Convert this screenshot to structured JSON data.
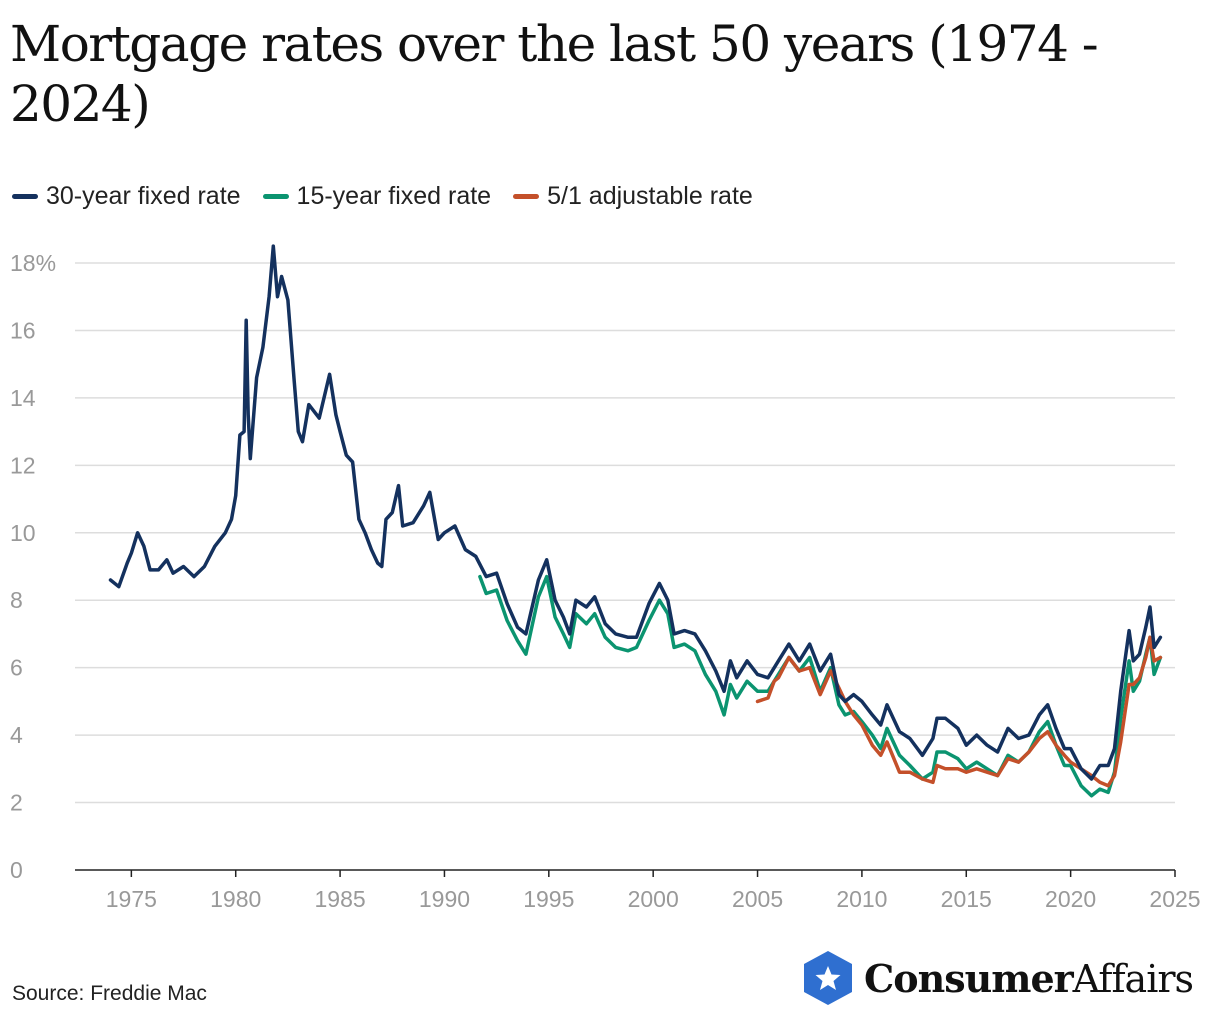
{
  "title": "Mortgage rates over the last 50 years (1974 - 2024)",
  "source": "Source: Freddie Mac",
  "logo": {
    "bold": "Consumer",
    "regular": "Affairs",
    "icon": "star-badge-icon",
    "color": "#2f6fd0"
  },
  "colors": {
    "s30": "#14315e",
    "s15": "#0b9470",
    "s51": "#c4502a",
    "grid": "#dddddd",
    "axis": "#222222",
    "tick": "#999999"
  },
  "chart_data": {
    "type": "line",
    "title": "Mortgage rates over the last 50 years (1974 - 2024)",
    "xlabel": "",
    "ylabel": "",
    "xlim": [
      1972.3,
      2025
    ],
    "ylim": [
      0,
      18
    ],
    "grid": "horizontal",
    "legend": "top-left",
    "x_ticks": [
      "1975",
      "1980",
      "1985",
      "1990",
      "1995",
      "2000",
      "2005",
      "2010",
      "2015",
      "2020",
      "2025"
    ],
    "y_ticks": [
      "18%",
      "16",
      "14",
      "12",
      "10",
      "8",
      "6",
      "4",
      "2",
      "0"
    ],
    "series": [
      {
        "name": "30-year fixed rate",
        "color": "#14315e",
        "points": [
          [
            1974.0,
            8.6
          ],
          [
            1974.4,
            8.4
          ],
          [
            1974.8,
            9.1
          ],
          [
            1975.0,
            9.4
          ],
          [
            1975.3,
            10.0
          ],
          [
            1975.6,
            9.6
          ],
          [
            1975.9,
            8.9
          ],
          [
            1976.3,
            8.9
          ],
          [
            1976.7,
            9.2
          ],
          [
            1977.0,
            8.8
          ],
          [
            1977.5,
            9.0
          ],
          [
            1978.0,
            8.7
          ],
          [
            1978.5,
            9.0
          ],
          [
            1979.0,
            9.6
          ],
          [
            1979.5,
            10.0
          ],
          [
            1979.8,
            10.4
          ],
          [
            1980.0,
            11.1
          ],
          [
            1980.2,
            12.9
          ],
          [
            1980.4,
            13.0
          ],
          [
            1980.5,
            16.3
          ],
          [
            1980.6,
            13.5
          ],
          [
            1980.7,
            12.2
          ],
          [
            1981.0,
            14.6
          ],
          [
            1981.3,
            15.5
          ],
          [
            1981.6,
            17.0
          ],
          [
            1981.8,
            18.5
          ],
          [
            1982.0,
            17.0
          ],
          [
            1982.2,
            17.6
          ],
          [
            1982.5,
            16.9
          ],
          [
            1982.8,
            14.5
          ],
          [
            1983.0,
            13.0
          ],
          [
            1983.2,
            12.7
          ],
          [
            1983.5,
            13.8
          ],
          [
            1984.0,
            13.4
          ],
          [
            1984.5,
            14.7
          ],
          [
            1984.8,
            13.5
          ],
          [
            1985.0,
            13.0
          ],
          [
            1985.3,
            12.3
          ],
          [
            1985.6,
            12.1
          ],
          [
            1985.9,
            10.4
          ],
          [
            1986.2,
            10.0
          ],
          [
            1986.5,
            9.5
          ],
          [
            1986.8,
            9.1
          ],
          [
            1987.0,
            9.0
          ],
          [
            1987.2,
            10.4
          ],
          [
            1987.5,
            10.6
          ],
          [
            1987.8,
            11.4
          ],
          [
            1988.0,
            10.2
          ],
          [
            1988.5,
            10.3
          ],
          [
            1989.0,
            10.8
          ],
          [
            1989.3,
            11.2
          ],
          [
            1989.7,
            9.8
          ],
          [
            1990.0,
            10.0
          ],
          [
            1990.5,
            10.2
          ],
          [
            1991.0,
            9.5
          ],
          [
            1991.5,
            9.3
          ],
          [
            1992.0,
            8.7
          ],
          [
            1992.5,
            8.8
          ],
          [
            1993.0,
            7.9
          ],
          [
            1993.5,
            7.2
          ],
          [
            1993.9,
            7.0
          ],
          [
            1994.5,
            8.6
          ],
          [
            1994.9,
            9.2
          ],
          [
            1995.3,
            8.0
          ],
          [
            1995.7,
            7.5
          ],
          [
            1996.0,
            7.0
          ],
          [
            1996.3,
            8.0
          ],
          [
            1996.8,
            7.8
          ],
          [
            1997.2,
            8.1
          ],
          [
            1997.7,
            7.3
          ],
          [
            1998.2,
            7.0
          ],
          [
            1998.8,
            6.9
          ],
          [
            1999.2,
            6.9
          ],
          [
            1999.8,
            7.9
          ],
          [
            2000.3,
            8.5
          ],
          [
            2000.7,
            8.0
          ],
          [
            2001.0,
            7.0
          ],
          [
            2001.5,
            7.1
          ],
          [
            2002.0,
            7.0
          ],
          [
            2002.5,
            6.5
          ],
          [
            2003.0,
            5.9
          ],
          [
            2003.4,
            5.3
          ],
          [
            2003.7,
            6.2
          ],
          [
            2004.0,
            5.7
          ],
          [
            2004.5,
            6.2
          ],
          [
            2005.0,
            5.8
          ],
          [
            2005.5,
            5.7
          ],
          [
            2006.0,
            6.2
          ],
          [
            2006.5,
            6.7
          ],
          [
            2007.0,
            6.2
          ],
          [
            2007.5,
            6.7
          ],
          [
            2008.0,
            5.9
          ],
          [
            2008.5,
            6.4
          ],
          [
            2008.9,
            5.2
          ],
          [
            2009.2,
            5.0
          ],
          [
            2009.6,
            5.2
          ],
          [
            2010.0,
            5.0
          ],
          [
            2010.5,
            4.6
          ],
          [
            2010.9,
            4.3
          ],
          [
            2011.2,
            4.9
          ],
          [
            2011.8,
            4.1
          ],
          [
            2012.3,
            3.9
          ],
          [
            2012.9,
            3.4
          ],
          [
            2013.4,
            3.9
          ],
          [
            2013.6,
            4.5
          ],
          [
            2014.0,
            4.5
          ],
          [
            2014.6,
            4.2
          ],
          [
            2015.0,
            3.7
          ],
          [
            2015.5,
            4.0
          ],
          [
            2016.0,
            3.7
          ],
          [
            2016.5,
            3.5
          ],
          [
            2017.0,
            4.2
          ],
          [
            2017.5,
            3.9
          ],
          [
            2018.0,
            4.0
          ],
          [
            2018.5,
            4.6
          ],
          [
            2018.9,
            4.9
          ],
          [
            2019.3,
            4.2
          ],
          [
            2019.7,
            3.6
          ],
          [
            2020.0,
            3.6
          ],
          [
            2020.5,
            3.0
          ],
          [
            2021.0,
            2.7
          ],
          [
            2021.4,
            3.1
          ],
          [
            2021.8,
            3.1
          ],
          [
            2022.1,
            3.6
          ],
          [
            2022.4,
            5.3
          ],
          [
            2022.8,
            7.1
          ],
          [
            2023.0,
            6.2
          ],
          [
            2023.3,
            6.4
          ],
          [
            2023.6,
            7.2
          ],
          [
            2023.8,
            7.8
          ],
          [
            2024.0,
            6.6
          ],
          [
            2024.3,
            6.9
          ]
        ]
      },
      {
        "name": "15-year fixed rate",
        "color": "#0b9470",
        "points": [
          [
            1991.7,
            8.7
          ],
          [
            1992.0,
            8.2
          ],
          [
            1992.5,
            8.3
          ],
          [
            1993.0,
            7.4
          ],
          [
            1993.5,
            6.8
          ],
          [
            1993.9,
            6.4
          ],
          [
            1994.5,
            8.1
          ],
          [
            1994.9,
            8.7
          ],
          [
            1995.3,
            7.5
          ],
          [
            1995.7,
            7.0
          ],
          [
            1996.0,
            6.6
          ],
          [
            1996.3,
            7.6
          ],
          [
            1996.8,
            7.3
          ],
          [
            1997.2,
            7.6
          ],
          [
            1997.7,
            6.9
          ],
          [
            1998.2,
            6.6
          ],
          [
            1998.8,
            6.5
          ],
          [
            1999.2,
            6.6
          ],
          [
            1999.8,
            7.4
          ],
          [
            2000.3,
            8.0
          ],
          [
            2000.7,
            7.6
          ],
          [
            2001.0,
            6.6
          ],
          [
            2001.5,
            6.7
          ],
          [
            2002.0,
            6.5
          ],
          [
            2002.5,
            5.8
          ],
          [
            2003.0,
            5.3
          ],
          [
            2003.4,
            4.6
          ],
          [
            2003.7,
            5.5
          ],
          [
            2004.0,
            5.1
          ],
          [
            2004.5,
            5.6
          ],
          [
            2005.0,
            5.3
          ],
          [
            2005.5,
            5.3
          ],
          [
            2006.0,
            5.8
          ],
          [
            2006.5,
            6.3
          ],
          [
            2007.0,
            5.9
          ],
          [
            2007.5,
            6.3
          ],
          [
            2008.0,
            5.3
          ],
          [
            2008.5,
            6.0
          ],
          [
            2008.9,
            4.9
          ],
          [
            2009.2,
            4.6
          ],
          [
            2009.6,
            4.7
          ],
          [
            2010.0,
            4.4
          ],
          [
            2010.5,
            4.0
          ],
          [
            2010.9,
            3.6
          ],
          [
            2011.2,
            4.2
          ],
          [
            2011.8,
            3.4
          ],
          [
            2012.3,
            3.1
          ],
          [
            2012.9,
            2.7
          ],
          [
            2013.4,
            2.9
          ],
          [
            2013.6,
            3.5
          ],
          [
            2014.0,
            3.5
          ],
          [
            2014.6,
            3.3
          ],
          [
            2015.0,
            3.0
          ],
          [
            2015.5,
            3.2
          ],
          [
            2016.0,
            3.0
          ],
          [
            2016.5,
            2.8
          ],
          [
            2017.0,
            3.4
          ],
          [
            2017.5,
            3.2
          ],
          [
            2018.0,
            3.5
          ],
          [
            2018.5,
            4.1
          ],
          [
            2018.9,
            4.4
          ],
          [
            2019.3,
            3.7
          ],
          [
            2019.7,
            3.1
          ],
          [
            2020.0,
            3.1
          ],
          [
            2020.5,
            2.5
          ],
          [
            2021.0,
            2.2
          ],
          [
            2021.4,
            2.4
          ],
          [
            2021.8,
            2.3
          ],
          [
            2022.1,
            2.9
          ],
          [
            2022.4,
            4.5
          ],
          [
            2022.8,
            6.2
          ],
          [
            2023.0,
            5.3
          ],
          [
            2023.3,
            5.6
          ],
          [
            2023.6,
            6.4
          ],
          [
            2023.8,
            6.9
          ],
          [
            2024.0,
            5.8
          ],
          [
            2024.3,
            6.3
          ]
        ]
      },
      {
        "name": "5/1 adjustable rate",
        "color": "#c4502a",
        "points": [
          [
            2005.0,
            5.0
          ],
          [
            2005.5,
            5.1
          ],
          [
            2005.8,
            5.6
          ],
          [
            2006.0,
            5.7
          ],
          [
            2006.5,
            6.3
          ],
          [
            2007.0,
            5.9
          ],
          [
            2007.5,
            6.0
          ],
          [
            2008.0,
            5.2
          ],
          [
            2008.5,
            5.9
          ],
          [
            2008.9,
            5.4
          ],
          [
            2009.2,
            5.0
          ],
          [
            2009.6,
            4.6
          ],
          [
            2010.0,
            4.3
          ],
          [
            2010.5,
            3.7
          ],
          [
            2010.9,
            3.4
          ],
          [
            2011.2,
            3.8
          ],
          [
            2011.8,
            2.9
          ],
          [
            2012.3,
            2.9
          ],
          [
            2012.9,
            2.7
          ],
          [
            2013.4,
            2.6
          ],
          [
            2013.6,
            3.1
          ],
          [
            2014.0,
            3.0
          ],
          [
            2014.6,
            3.0
          ],
          [
            2015.0,
            2.9
          ],
          [
            2015.5,
            3.0
          ],
          [
            2016.0,
            2.9
          ],
          [
            2016.5,
            2.8
          ],
          [
            2017.0,
            3.3
          ],
          [
            2017.5,
            3.2
          ],
          [
            2018.0,
            3.5
          ],
          [
            2018.5,
            3.9
          ],
          [
            2018.9,
            4.1
          ],
          [
            2019.3,
            3.7
          ],
          [
            2019.7,
            3.4
          ],
          [
            2020.0,
            3.2
          ],
          [
            2020.5,
            3.0
          ],
          [
            2021.0,
            2.8
          ],
          [
            2021.4,
            2.6
          ],
          [
            2021.8,
            2.5
          ],
          [
            2022.1,
            2.8
          ],
          [
            2022.4,
            3.8
          ],
          [
            2022.8,
            5.5
          ],
          [
            2023.0,
            5.5
          ],
          [
            2023.3,
            5.7
          ],
          [
            2023.6,
            6.3
          ],
          [
            2023.8,
            6.9
          ],
          [
            2024.0,
            6.2
          ],
          [
            2024.3,
            6.3
          ]
        ]
      }
    ]
  }
}
